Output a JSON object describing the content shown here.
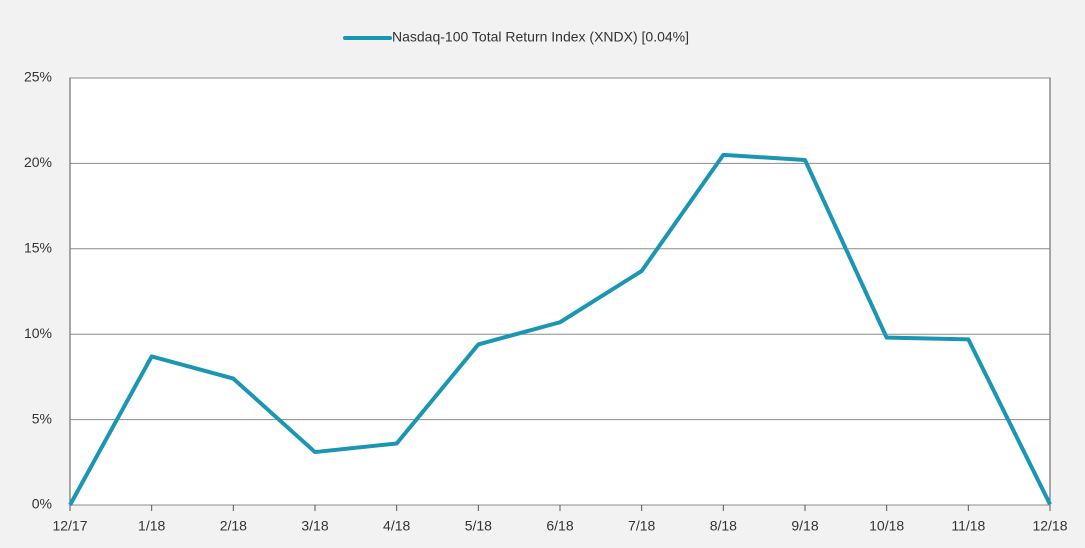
{
  "chart_data": {
    "type": "line",
    "categories": [
      "12/17",
      "1/18",
      "2/18",
      "3/18",
      "4/18",
      "5/18",
      "6/18",
      "7/18",
      "8/18",
      "9/18",
      "10/18",
      "11/18",
      "12/18"
    ],
    "series": [
      {
        "name": "Nasdaq-100 Total Return Index (XNDX) [0.04%]",
        "color": "#1a96b4",
        "values": [
          0,
          8.7,
          7.4,
          3.1,
          3.6,
          9.4,
          10.7,
          13.7,
          20.5,
          20.2,
          9.8,
          9.7,
          0.04
        ]
      }
    ],
    "ylim": [
      0,
      25
    ],
    "yticks": [
      {
        "value": 0,
        "label": "0%"
      },
      {
        "value": 5,
        "label": "5%"
      },
      {
        "value": 10,
        "label": "10%"
      },
      {
        "value": 15,
        "label": "15%"
      },
      {
        "value": 20,
        "label": "20%"
      },
      {
        "value": 25,
        "label": "25%"
      }
    ],
    "grid": true,
    "legend": "top"
  }
}
